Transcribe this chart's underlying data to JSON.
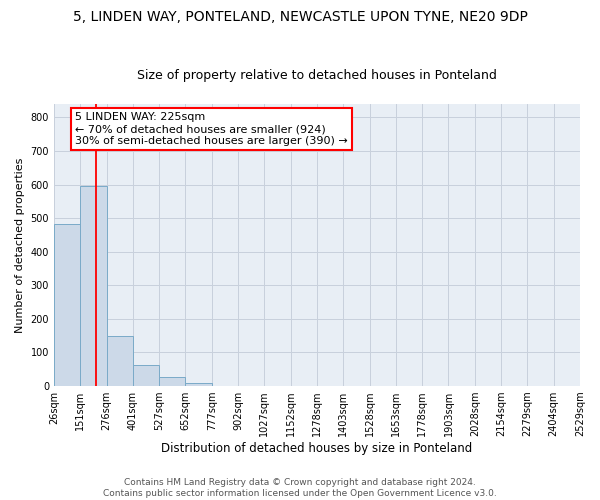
{
  "title": "5, LINDEN WAY, PONTELAND, NEWCASTLE UPON TYNE, NE20 9DP",
  "subtitle": "Size of property relative to detached houses in Ponteland",
  "xlabel": "Distribution of detached houses by size in Ponteland",
  "ylabel": "Number of detached properties",
  "bar_values": [
    483,
    595,
    150,
    62,
    27,
    9,
    1,
    0,
    0,
    0,
    0,
    0,
    0,
    0,
    0,
    0,
    0,
    0,
    0,
    0
  ],
  "bin_labels": [
    "26sqm",
    "151sqm",
    "276sqm",
    "401sqm",
    "527sqm",
    "652sqm",
    "777sqm",
    "902sqm",
    "1027sqm",
    "1152sqm",
    "1278sqm",
    "1403sqm",
    "1528sqm",
    "1653sqm",
    "1778sqm",
    "1903sqm",
    "2028sqm",
    "2154sqm",
    "2279sqm",
    "2404sqm",
    "2529sqm"
  ],
  "bar_color": "#ccd9e8",
  "bar_edge_color": "#7aaac8",
  "vline_x": 1.592,
  "annotation_text": "5 LINDEN WAY: 225sqm\n← 70% of detached houses are smaller (924)\n30% of semi-detached houses are larger (390) →",
  "annotation_box_color": "white",
  "annotation_box_edge_color": "red",
  "vline_color": "red",
  "ylim": [
    0,
    840
  ],
  "yticks": [
    0,
    100,
    200,
    300,
    400,
    500,
    600,
    700,
    800
  ],
  "grid_color": "#c8d0dc",
  "background_color": "#e8eef5",
  "footer_line1": "Contains HM Land Registry data © Crown copyright and database right 2024.",
  "footer_line2": "Contains public sector information licensed under the Open Government Licence v3.0.",
  "title_fontsize": 10,
  "subtitle_fontsize": 9,
  "xlabel_fontsize": 8.5,
  "ylabel_fontsize": 8,
  "tick_fontsize": 7,
  "annotation_fontsize": 8,
  "footer_fontsize": 6.5
}
